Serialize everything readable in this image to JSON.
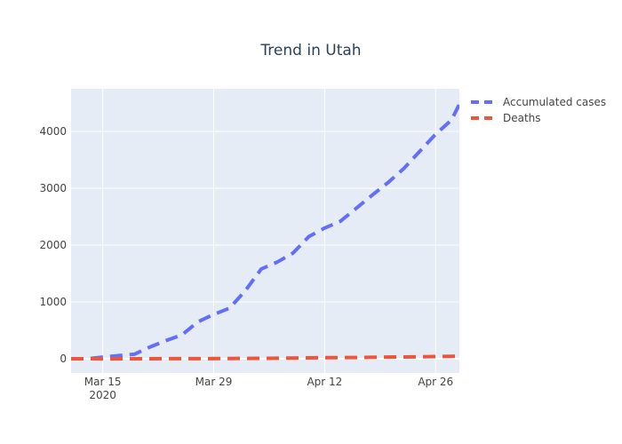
{
  "chart_data": {
    "type": "line",
    "title": "Trend in Utah",
    "xlabel": "",
    "ylabel": "",
    "x_axis": {
      "type": "date",
      "range": [
        "2020-03-11",
        "2020-04-29"
      ],
      "ticks": [
        {
          "date": "2020-03-15",
          "label": "Mar 15",
          "sublabel": "2020"
        },
        {
          "date": "2020-03-29",
          "label": "Mar 29",
          "sublabel": ""
        },
        {
          "date": "2020-04-12",
          "label": "Apr 12",
          "sublabel": ""
        },
        {
          "date": "2020-04-26",
          "label": "Apr 26",
          "sublabel": ""
        }
      ]
    },
    "y_axis": {
      "range": [
        -250,
        4750
      ],
      "ticks": [
        {
          "value": 0,
          "label": "0"
        },
        {
          "value": 1000,
          "label": "1000"
        },
        {
          "value": 2000,
          "label": "2000"
        },
        {
          "value": 3000,
          "label": "3000"
        },
        {
          "value": 4000,
          "label": "4000"
        }
      ]
    },
    "grid": true,
    "legend_position": "top-right",
    "series": [
      {
        "name": "Accumulated cases",
        "color": "#636efa",
        "dash": "dash",
        "points": [
          {
            "x": "2020-03-11",
            "y": 0
          },
          {
            "x": "2020-03-13",
            "y": 0
          },
          {
            "x": "2020-03-15",
            "y": 30
          },
          {
            "x": "2020-03-17",
            "y": 55
          },
          {
            "x": "2020-03-19",
            "y": 80
          },
          {
            "x": "2020-03-21",
            "y": 210
          },
          {
            "x": "2020-03-23",
            "y": 320
          },
          {
            "x": "2020-03-25",
            "y": 420
          },
          {
            "x": "2020-03-27",
            "y": 650
          },
          {
            "x": "2020-03-29",
            "y": 780
          },
          {
            "x": "2020-03-31",
            "y": 890
          },
          {
            "x": "2020-04-02",
            "y": 1200
          },
          {
            "x": "2020-04-04",
            "y": 1580
          },
          {
            "x": "2020-04-06",
            "y": 1700
          },
          {
            "x": "2020-04-08",
            "y": 1860
          },
          {
            "x": "2020-04-10",
            "y": 2150
          },
          {
            "x": "2020-04-12",
            "y": 2300
          },
          {
            "x": "2020-04-14",
            "y": 2420
          },
          {
            "x": "2020-04-16",
            "y": 2650
          },
          {
            "x": "2020-04-18",
            "y": 2880
          },
          {
            "x": "2020-04-20",
            "y": 3100
          },
          {
            "x": "2020-04-22",
            "y": 3350
          },
          {
            "x": "2020-04-24",
            "y": 3650
          },
          {
            "x": "2020-04-26",
            "y": 3950
          },
          {
            "x": "2020-04-28",
            "y": 4200
          },
          {
            "x": "2020-04-29",
            "y": 4480
          }
        ]
      },
      {
        "name": "Deaths",
        "color": "#ef553b",
        "dash": "dash",
        "points": [
          {
            "x": "2020-03-11",
            "y": 0
          },
          {
            "x": "2020-03-15",
            "y": 0
          },
          {
            "x": "2020-03-19",
            "y": 0
          },
          {
            "x": "2020-03-23",
            "y": 1
          },
          {
            "x": "2020-03-27",
            "y": 2
          },
          {
            "x": "2020-03-31",
            "y": 5
          },
          {
            "x": "2020-04-04",
            "y": 8
          },
          {
            "x": "2020-04-08",
            "y": 13
          },
          {
            "x": "2020-04-12",
            "y": 18
          },
          {
            "x": "2020-04-16",
            "y": 22
          },
          {
            "x": "2020-04-20",
            "y": 30
          },
          {
            "x": "2020-04-24",
            "y": 35
          },
          {
            "x": "2020-04-29",
            "y": 46
          }
        ]
      }
    ]
  },
  "colors": {
    "plot_background": "#e5ecf6",
    "grid": "#ffffff",
    "title": "#2a3f5f",
    "tick_label": "#444444"
  }
}
